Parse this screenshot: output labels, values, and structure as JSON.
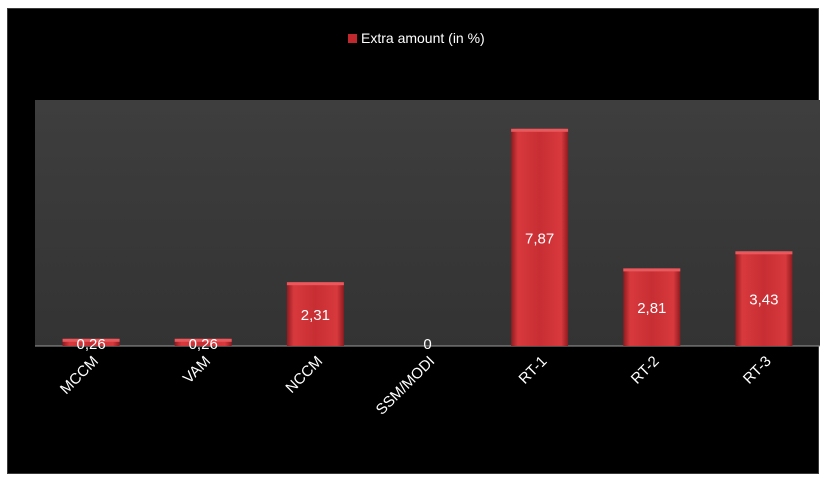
{
  "chart_data": {
    "type": "bar",
    "legend": {
      "position": "top",
      "entries": [
        "Extra amount (in %)"
      ]
    },
    "series": [
      {
        "name": "Extra amount (in %)",
        "color": "#c0282d",
        "values": [
          0.26,
          0.26,
          2.31,
          0,
          7.87,
          2.81,
          3.43
        ]
      }
    ],
    "categories": [
      "MCCM",
      "VAM",
      "NCCM",
      "SSM/MODI",
      "RT-1",
      "RT-2",
      "RT-3"
    ],
    "data_labels": [
      "0,26",
      "0,26",
      "2,31",
      "0",
      "7,87",
      "2,81",
      "3,43"
    ],
    "ylim": [
      0,
      8
    ],
    "grid": false,
    "colors": {
      "background": "#000000",
      "plot_area": "#3a3a3a",
      "bar": "#c0282d",
      "text": "#ffffff"
    }
  }
}
